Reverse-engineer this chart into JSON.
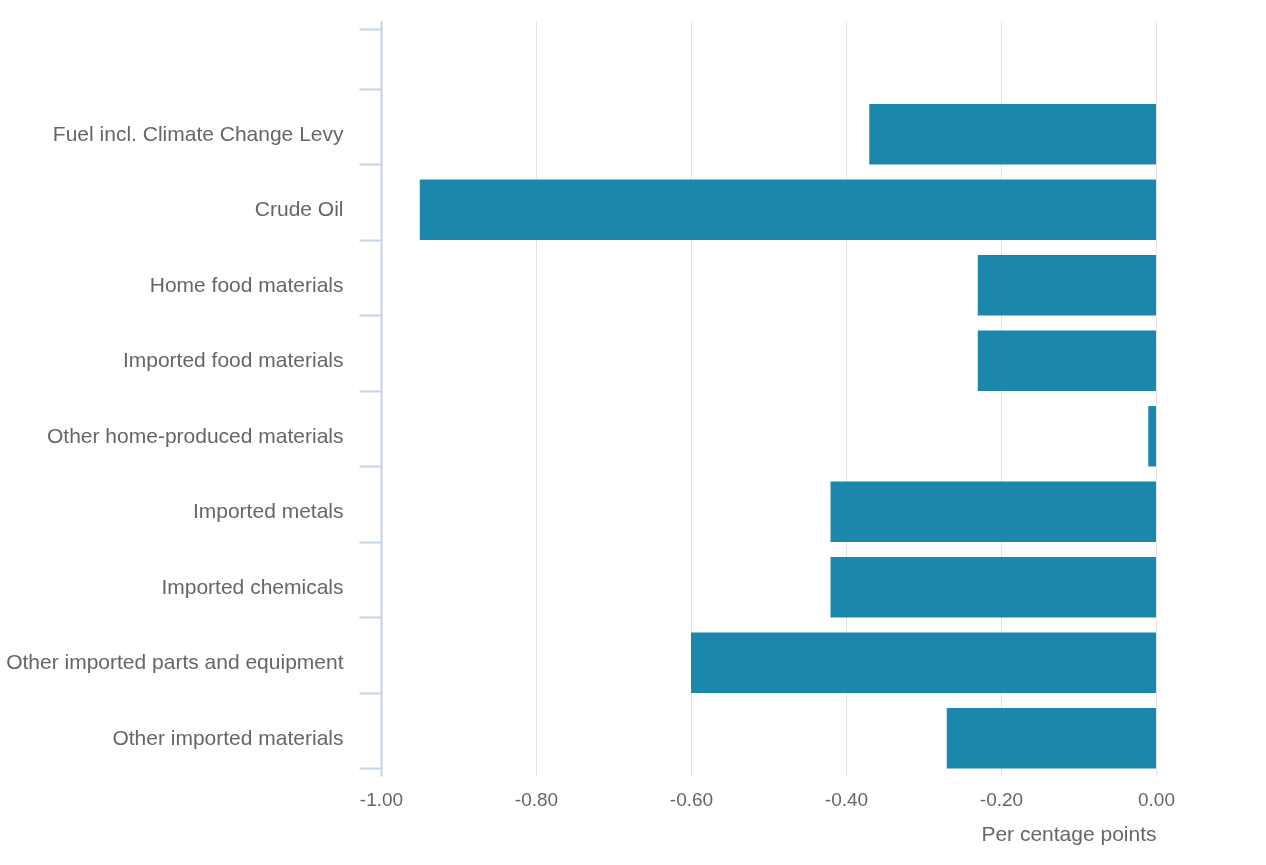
{
  "chart_data": {
    "type": "bar",
    "orientation": "horizontal",
    "xlabel": "Per centage points",
    "categories": [
      null,
      "Fuel incl. Climate Change Levy",
      "Crude Oil",
      "Home food materials",
      "Imported food materials",
      "Other home-produced materials",
      "Imported metals",
      "Imported chemicals",
      "Other imported parts and equipment",
      "Other imported materials"
    ],
    "values": [
      null,
      -0.37,
      -0.95,
      -0.23,
      -0.23,
      -0.01,
      -0.42,
      -0.42,
      -0.6,
      -0.27
    ],
    "color": "#1b87ad",
    "xlim": [
      -1,
      0
    ],
    "xticks": [
      {
        "value": -1,
        "label": "-1.00"
      },
      {
        "value": -0.8,
        "label": "-0.80"
      },
      {
        "value": -0.6,
        "label": "-0.60"
      },
      {
        "value": -0.4,
        "label": "-0.40"
      },
      {
        "value": -0.2,
        "label": "-0.20"
      },
      {
        "value": 0,
        "label": "0.00"
      }
    ],
    "grid": "x"
  }
}
